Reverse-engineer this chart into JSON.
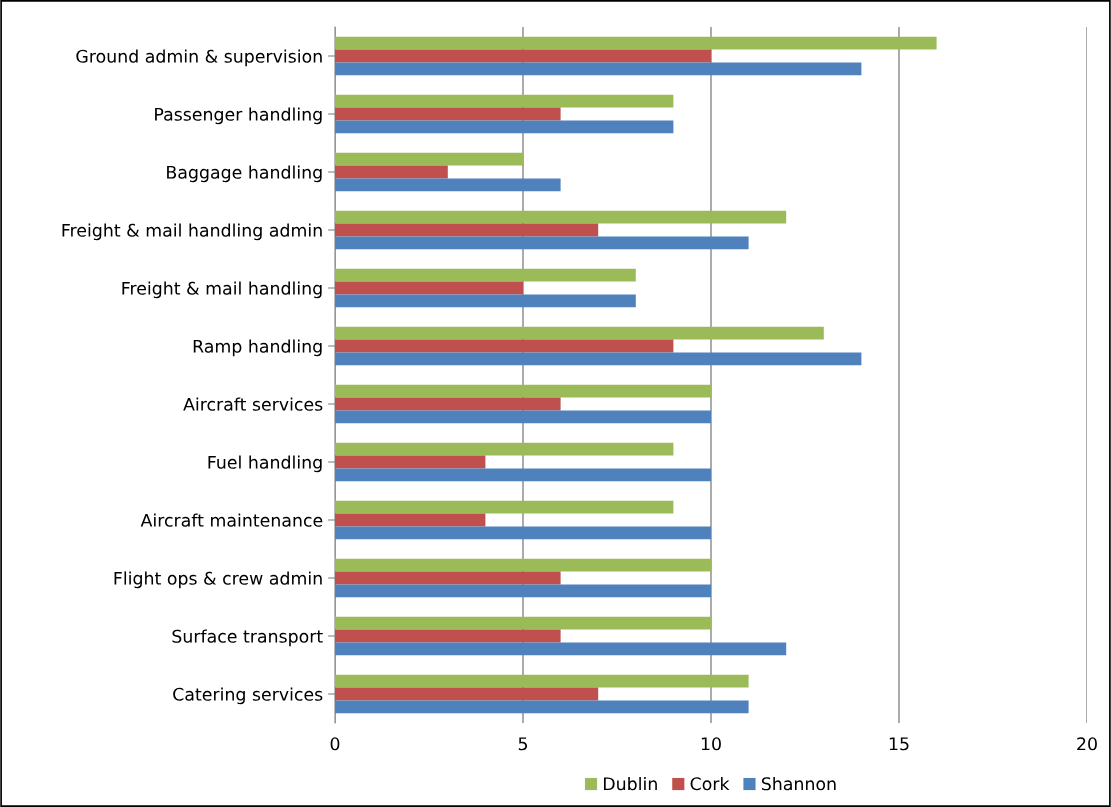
{
  "chart_data": {
    "type": "bar",
    "orientation": "horizontal",
    "categories": [
      "Ground admin & supervision",
      "Passenger handling",
      "Baggage handling",
      "Freight & mail handling admin",
      "Freight & mail handling",
      "Ramp handling",
      "Aircraft services",
      "Fuel handling",
      "Aircraft maintenance",
      "Flight ops & crew admin",
      "Surface transport",
      "Catering services"
    ],
    "series": [
      {
        "name": "Dublin",
        "color": "#9bbb59",
        "values": [
          16,
          9,
          5,
          12,
          8,
          13,
          10,
          9,
          9,
          10,
          10,
          11
        ]
      },
      {
        "name": "Cork",
        "color": "#c0504d",
        "values": [
          10,
          6,
          3,
          7,
          5,
          9,
          6,
          4,
          4,
          6,
          6,
          7
        ]
      },
      {
        "name": "Shannon",
        "color": "#4f81bd",
        "values": [
          14,
          9,
          6,
          11,
          8,
          14,
          10,
          10,
          10,
          10,
          12,
          11
        ]
      }
    ],
    "xlim": [
      0,
      20
    ],
    "xticks": [
      0,
      5,
      10,
      15,
      20
    ],
    "grid": "x",
    "legend": "bottom"
  }
}
